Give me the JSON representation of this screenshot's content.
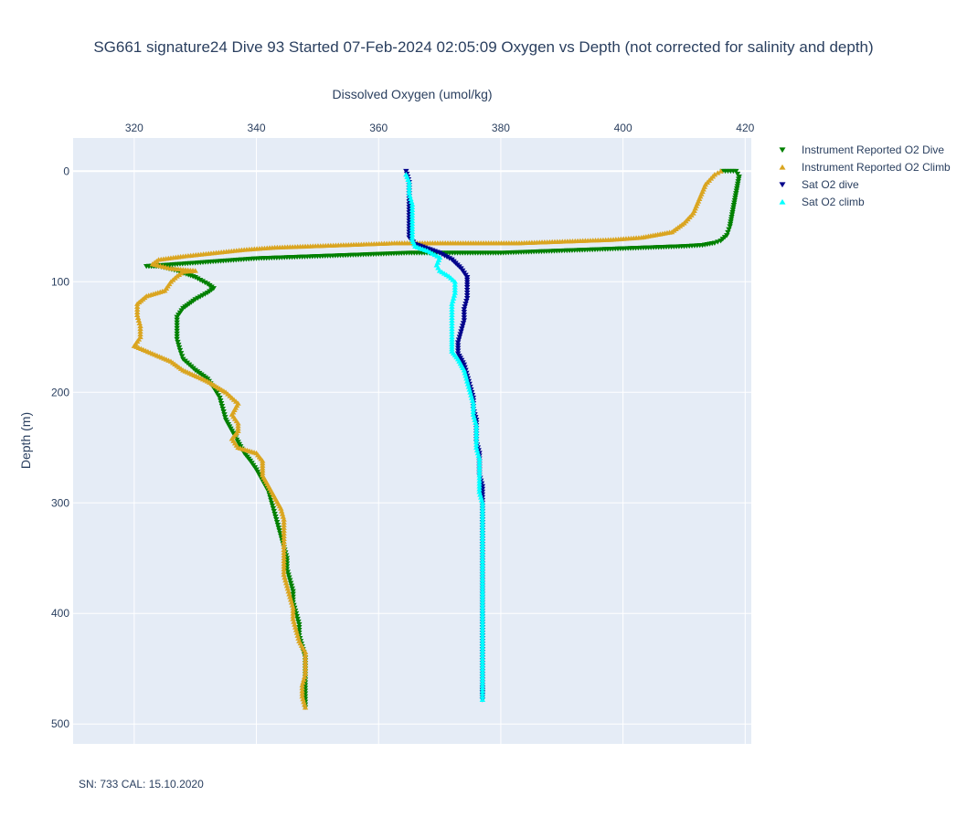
{
  "chart_data": {
    "type": "scatter",
    "title": "SG661 signature24 Dive 93 Started 07-Feb-2024 02:05:09  Oxygen vs Depth (not corrected for salinity and depth)",
    "xlabel": "Dissolved Oxygen (umol/kg)",
    "ylabel": "Depth (m)",
    "xlim": [
      310,
      421
    ],
    "ylim": [
      518,
      -30
    ],
    "y_reversed": true,
    "x_axis_position": "top",
    "x_ticks": [
      320,
      340,
      360,
      380,
      400,
      420
    ],
    "y_ticks": [
      0,
      100,
      200,
      300,
      400,
      500
    ],
    "grid": true,
    "legend_position": "right",
    "series": [
      {
        "name": "Instrument Reported O2 Dive",
        "marker": "triangle-down",
        "color": "#008000",
        "points": [
          [
            416.3,
            0
          ],
          [
            418.5,
            0
          ],
          [
            419,
            5
          ],
          [
            418.5,
            20
          ],
          [
            418,
            35
          ],
          [
            417.5,
            50
          ],
          [
            417,
            58
          ],
          [
            416,
            63
          ],
          [
            415,
            65
          ],
          [
            413,
            67
          ],
          [
            410,
            68
          ],
          [
            405,
            69
          ],
          [
            400,
            70
          ],
          [
            395,
            71
          ],
          [
            390,
            72
          ],
          [
            385,
            73
          ],
          [
            380,
            74
          ],
          [
            375,
            74
          ],
          [
            370,
            74
          ],
          [
            365,
            74
          ],
          [
            360,
            75
          ],
          [
            355,
            76
          ],
          [
            350,
            77
          ],
          [
            345,
            78
          ],
          [
            340,
            79
          ],
          [
            335,
            81
          ],
          [
            330,
            83
          ],
          [
            325,
            85
          ],
          [
            322,
            86
          ],
          [
            324,
            86
          ],
          [
            327,
            90
          ],
          [
            330,
            96
          ],
          [
            332,
            102
          ],
          [
            333,
            106
          ],
          [
            332,
            110
          ],
          [
            330,
            116
          ],
          [
            328,
            124
          ],
          [
            327,
            132
          ],
          [
            327,
            142
          ],
          [
            327,
            152
          ],
          [
            327.5,
            162
          ],
          [
            328,
            170
          ],
          [
            330,
            180
          ],
          [
            332,
            188
          ],
          [
            333,
            196
          ],
          [
            334,
            205
          ],
          [
            334.5,
            215
          ],
          [
            335,
            225
          ],
          [
            336,
            235
          ],
          [
            337,
            245
          ],
          [
            338,
            255
          ],
          [
            339,
            262
          ],
          [
            340,
            270
          ],
          [
            341,
            280
          ],
          [
            342,
            290
          ],
          [
            342.5,
            300
          ],
          [
            343,
            310
          ],
          [
            343.5,
            320
          ],
          [
            344,
            330
          ],
          [
            344.5,
            340
          ],
          [
            345,
            350
          ],
          [
            345,
            360
          ],
          [
            345.5,
            370
          ],
          [
            346,
            380
          ],
          [
            346,
            390
          ],
          [
            346.5,
            400
          ],
          [
            347,
            410
          ],
          [
            347,
            420
          ],
          [
            347.5,
            430
          ],
          [
            348,
            440
          ],
          [
            348,
            450
          ],
          [
            348,
            460
          ],
          [
            348,
            470
          ],
          [
            348,
            480
          ],
          [
            348,
            485
          ]
        ]
      },
      {
        "name": "Instrument Reported O2 Climb",
        "marker": "triangle-up",
        "color": "#daa520",
        "points": [
          [
            348,
            485
          ],
          [
            347.5,
            475
          ],
          [
            347.5,
            465
          ],
          [
            348,
            455
          ],
          [
            348,
            445
          ],
          [
            348,
            435
          ],
          [
            347,
            425
          ],
          [
            346.5,
            415
          ],
          [
            346,
            405
          ],
          [
            346,
            395
          ],
          [
            345.5,
            385
          ],
          [
            345,
            375
          ],
          [
            344.5,
            365
          ],
          [
            344.5,
            355
          ],
          [
            344.5,
            345
          ],
          [
            344.5,
            335
          ],
          [
            344.5,
            325
          ],
          [
            344.5,
            315
          ],
          [
            344,
            305
          ],
          [
            343,
            295
          ],
          [
            342,
            285
          ],
          [
            341,
            275
          ],
          [
            341,
            262
          ],
          [
            340,
            255
          ],
          [
            337,
            250
          ],
          [
            336,
            242
          ],
          [
            337,
            235
          ],
          [
            337,
            228
          ],
          [
            336,
            220
          ],
          [
            337,
            210
          ],
          [
            335,
            200
          ],
          [
            332,
            190
          ],
          [
            328,
            180
          ],
          [
            326,
            172
          ],
          [
            323,
            165
          ],
          [
            320,
            158
          ],
          [
            321,
            150
          ],
          [
            321,
            140
          ],
          [
            320.5,
            130
          ],
          [
            320.5,
            120
          ],
          [
            322,
            113
          ],
          [
            325,
            108
          ],
          [
            326,
            100
          ],
          [
            327,
            95
          ],
          [
            328,
            91
          ],
          [
            330,
            90
          ],
          [
            326,
            88
          ],
          [
            323,
            84
          ],
          [
            324,
            80
          ],
          [
            328,
            77
          ],
          [
            333,
            74
          ],
          [
            338,
            71
          ],
          [
            343,
            69
          ],
          [
            348,
            68
          ],
          [
            353,
            67
          ],
          [
            358,
            66
          ],
          [
            363,
            65
          ],
          [
            368,
            65
          ],
          [
            373,
            65
          ],
          [
            378,
            65
          ],
          [
            383,
            65
          ],
          [
            388,
            64
          ],
          [
            393,
            63
          ],
          [
            398,
            62
          ],
          [
            403,
            60
          ],
          [
            408,
            55
          ],
          [
            410,
            47
          ],
          [
            411.5,
            38
          ],
          [
            412.5,
            25
          ],
          [
            413.5,
            12
          ],
          [
            415,
            3
          ],
          [
            416,
            0
          ]
        ]
      },
      {
        "name": "Sat O2 dive",
        "marker": "triangle-down",
        "color": "#00008b",
        "points": [
          [
            364.5,
            0
          ],
          [
            365,
            10
          ],
          [
            365,
            20
          ],
          [
            365,
            30
          ],
          [
            365,
            40
          ],
          [
            365,
            50
          ],
          [
            365,
            60
          ],
          [
            366,
            66
          ],
          [
            368,
            70
          ],
          [
            370,
            74
          ],
          [
            372,
            80
          ],
          [
            373.5,
            88
          ],
          [
            374.5,
            96
          ],
          [
            374.5,
            105
          ],
          [
            374.5,
            115
          ],
          [
            374,
            125
          ],
          [
            374,
            135
          ],
          [
            373.5,
            145
          ],
          [
            373,
            155
          ],
          [
            373,
            165
          ],
          [
            374,
            175
          ],
          [
            374.5,
            185
          ],
          [
            375,
            195
          ],
          [
            375.5,
            205
          ],
          [
            375.5,
            215
          ],
          [
            376,
            225
          ],
          [
            376,
            235
          ],
          [
            376,
            245
          ],
          [
            376.5,
            255
          ],
          [
            376.5,
            265
          ],
          [
            376.5,
            275
          ],
          [
            377,
            285
          ],
          [
            377,
            295
          ],
          [
            377,
            305
          ],
          [
            377,
            315
          ],
          [
            377,
            325
          ],
          [
            377,
            335
          ],
          [
            377,
            345
          ],
          [
            377,
            355
          ],
          [
            377,
            365
          ],
          [
            377,
            375
          ],
          [
            377,
            385
          ],
          [
            377,
            395
          ],
          [
            377,
            405
          ],
          [
            377,
            415
          ],
          [
            377,
            425
          ],
          [
            377,
            435
          ],
          [
            377,
            445
          ],
          [
            377,
            455
          ],
          [
            377,
            465
          ],
          [
            377,
            478
          ]
        ]
      },
      {
        "name": "Sat O2 climb",
        "marker": "triangle-up",
        "color": "#00ffff",
        "points": [
          [
            377,
            478
          ],
          [
            377,
            470
          ],
          [
            377,
            460
          ],
          [
            377,
            450
          ],
          [
            377,
            440
          ],
          [
            377,
            430
          ],
          [
            377,
            420
          ],
          [
            377,
            410
          ],
          [
            377,
            400
          ],
          [
            377,
            390
          ],
          [
            377,
            380
          ],
          [
            377,
            370
          ],
          [
            377,
            360
          ],
          [
            377,
            350
          ],
          [
            377,
            340
          ],
          [
            377,
            330
          ],
          [
            377,
            320
          ],
          [
            377,
            310
          ],
          [
            377,
            300
          ],
          [
            376.5,
            290
          ],
          [
            376.5,
            280
          ],
          [
            376.5,
            270
          ],
          [
            376.5,
            260
          ],
          [
            376,
            250
          ],
          [
            376,
            240
          ],
          [
            376,
            230
          ],
          [
            375.5,
            220
          ],
          [
            375.5,
            210
          ],
          [
            375,
            200
          ],
          [
            374.5,
            190
          ],
          [
            374,
            180
          ],
          [
            373,
            170
          ],
          [
            372,
            163
          ],
          [
            372,
            150
          ],
          [
            372,
            140
          ],
          [
            372,
            130
          ],
          [
            372,
            120
          ],
          [
            372.5,
            110
          ],
          [
            372.5,
            100
          ],
          [
            371.5,
            95
          ],
          [
            370,
            90
          ],
          [
            369.5,
            85
          ],
          [
            370,
            78
          ],
          [
            368,
            72
          ],
          [
            366,
            68
          ],
          [
            365.5,
            62
          ],
          [
            365.5,
            50
          ],
          [
            365.5,
            40
          ],
          [
            365.5,
            30
          ],
          [
            365,
            20
          ],
          [
            365,
            10
          ],
          [
            364.5,
            3
          ]
        ]
      }
    ]
  },
  "footnote": "SN: 733  CAL: 15.10.2020"
}
